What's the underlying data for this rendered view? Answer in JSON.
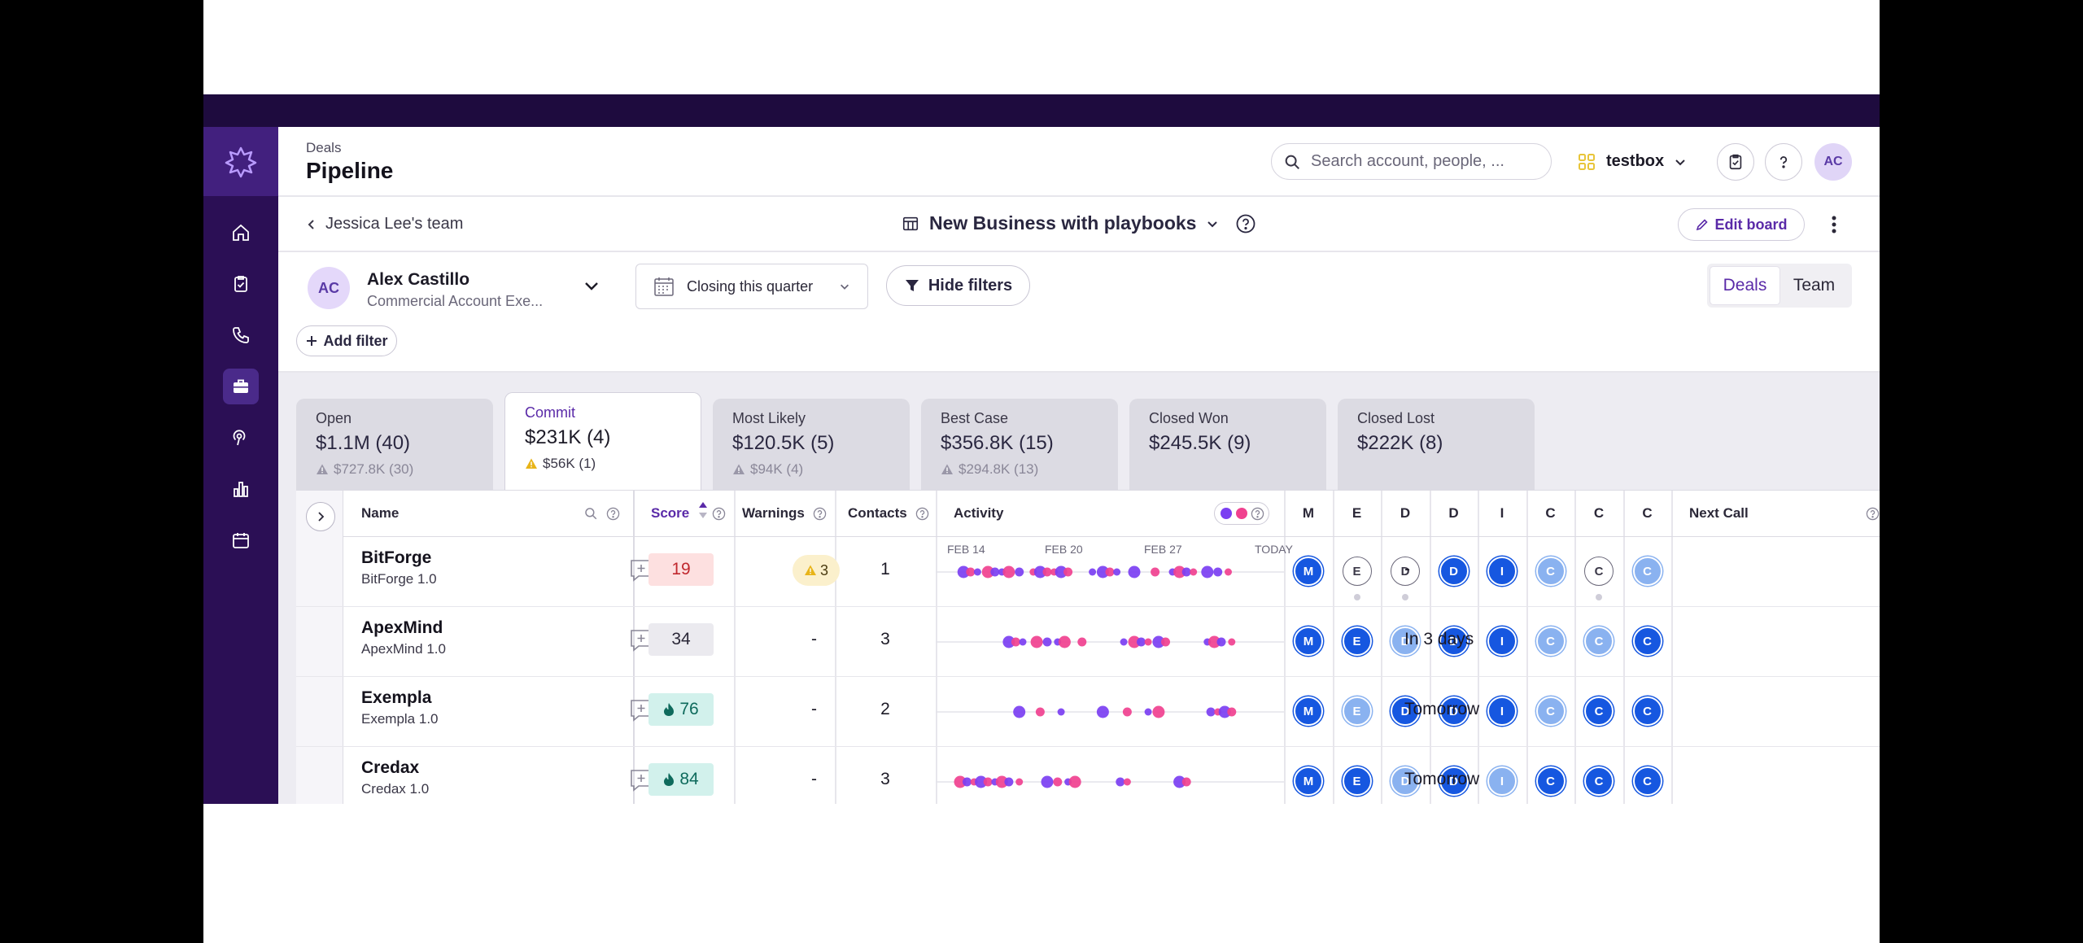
{
  "header": {
    "breadcrumb": "Deals",
    "title": "Pipeline",
    "search_placeholder": "Search account, people, ...",
    "workspace": "testbox",
    "avatar_initials": "AC"
  },
  "board_bar": {
    "back_label": "Jessica Lee's team",
    "board_name": "New Business with playbooks",
    "edit_label": "Edit board"
  },
  "filters": {
    "user_initials": "AC",
    "user_name": "Alex Castillo",
    "user_role": "Commercial Account Exe...",
    "period": "Closing this quarter",
    "hide_filters_label": "Hide filters",
    "add_filter_label": "Add filter",
    "view_toggle": [
      "Deals",
      "Team"
    ],
    "active_view": "Deals"
  },
  "forecast_tabs": [
    {
      "label": "Open",
      "value": "$1.1M (40)",
      "sub": "$727.8K (30)"
    },
    {
      "label": "Commit",
      "value": "$231K (4)",
      "sub": "$56K (1)"
    },
    {
      "label": "Most Likely",
      "value": "$120.5K (5)",
      "sub": "$94K (4)"
    },
    {
      "label": "Best Case",
      "value": "$356.8K (15)",
      "sub": "$294.8K (13)"
    },
    {
      "label": "Closed Won",
      "value": "$245.5K (9)",
      "sub": ""
    },
    {
      "label": "Closed Lost",
      "value": "$222K (8)",
      "sub": ""
    }
  ],
  "active_tab": "Commit",
  "table": {
    "columns": {
      "name": "Name",
      "score": "Score",
      "warnings": "Warnings",
      "contacts": "Contacts",
      "activity": "Activity",
      "roles": [
        "M",
        "E",
        "D",
        "D",
        "I",
        "C",
        "C",
        "C"
      ],
      "next_call": "Next Call"
    },
    "activity_dates": [
      "FEB 14",
      "FEB 20",
      "FEB 27",
      "TODAY"
    ],
    "rows": [
      {
        "name": "BitForge",
        "sub": "BitForge 1.0",
        "score": "19",
        "score_tone": "red",
        "score_flame": false,
        "warnings": "3",
        "contacts": "1",
        "contact_styles": [
          "dark",
          "empty",
          "empty",
          "dark",
          "dark",
          "light",
          "empty",
          "light"
        ],
        "contact_dots": [
          1,
          2,
          6
        ],
        "activity": [
          [
            0.08,
            "m"
          ],
          [
            0.1,
            "p"
          ],
          [
            0.12,
            "m"
          ],
          [
            0.15,
            "p"
          ],
          [
            0.17,
            "m"
          ],
          [
            0.19,
            "m"
          ],
          [
            0.21,
            "p"
          ],
          [
            0.24,
            "m"
          ],
          [
            0.28,
            "p"
          ],
          [
            0.3,
            "m"
          ],
          [
            0.32,
            "p"
          ],
          [
            0.34,
            "p"
          ],
          [
            0.36,
            "m"
          ],
          [
            0.38,
            "p"
          ],
          [
            0.45,
            "m"
          ],
          [
            0.48,
            "m"
          ],
          [
            0.5,
            "p"
          ],
          [
            0.52,
            "m"
          ],
          [
            0.57,
            "m"
          ],
          [
            0.63,
            "p"
          ],
          [
            0.68,
            "m"
          ],
          [
            0.7,
            "p"
          ],
          [
            0.72,
            "m"
          ],
          [
            0.74,
            "p"
          ],
          [
            0.78,
            "m"
          ],
          [
            0.81,
            "m"
          ],
          [
            0.84,
            "p"
          ]
        ],
        "next_call": "-"
      },
      {
        "name": "ApexMind",
        "sub": "ApexMind 1.0",
        "score": "34",
        "score_tone": "gray",
        "score_flame": false,
        "warnings": "-",
        "contacts": "3",
        "contact_styles": [
          "dark",
          "dark",
          "light",
          "dark",
          "dark",
          "light",
          "light",
          "dark"
        ],
        "contact_dots": [],
        "activity": [
          [
            0.21,
            "m"
          ],
          [
            0.23,
            "p"
          ],
          [
            0.25,
            "m"
          ],
          [
            0.29,
            "p"
          ],
          [
            0.32,
            "m"
          ],
          [
            0.35,
            "m"
          ],
          [
            0.37,
            "p"
          ],
          [
            0.42,
            "p"
          ],
          [
            0.54,
            "m"
          ],
          [
            0.57,
            "p"
          ],
          [
            0.59,
            "m"
          ],
          [
            0.61,
            "p"
          ],
          [
            0.64,
            "m"
          ],
          [
            0.66,
            "p"
          ],
          [
            0.78,
            "m"
          ],
          [
            0.8,
            "p"
          ],
          [
            0.82,
            "m"
          ],
          [
            0.85,
            "p"
          ]
        ],
        "next_call": "In 3 days"
      },
      {
        "name": "Exempla",
        "sub": "Exempla 1.0",
        "score": "76",
        "score_tone": "teal",
        "score_flame": true,
        "warnings": "-",
        "contacts": "2",
        "contact_styles": [
          "dark",
          "light",
          "dark",
          "dark",
          "dark",
          "light",
          "dark",
          "dark"
        ],
        "contact_dots": [],
        "activity": [
          [
            0.24,
            "m"
          ],
          [
            0.3,
            "p"
          ],
          [
            0.36,
            "m"
          ],
          [
            0.48,
            "m"
          ],
          [
            0.55,
            "p"
          ],
          [
            0.61,
            "m"
          ],
          [
            0.64,
            "p"
          ],
          [
            0.79,
            "m"
          ],
          [
            0.81,
            "p"
          ],
          [
            0.83,
            "m"
          ],
          [
            0.85,
            "p"
          ]
        ],
        "next_call": "Tomorrow"
      },
      {
        "name": "Credax",
        "sub": "Credax 1.0",
        "score": "84",
        "score_tone": "teal",
        "score_flame": true,
        "warnings": "-",
        "contacts": "3",
        "contact_styles": [
          "dark",
          "dark",
          "light",
          "dark",
          "light",
          "dark",
          "dark",
          "dark"
        ],
        "contact_dots": [],
        "activity": [
          [
            0.07,
            "p"
          ],
          [
            0.09,
            "m"
          ],
          [
            0.11,
            "p"
          ],
          [
            0.13,
            "m"
          ],
          [
            0.15,
            "p"
          ],
          [
            0.17,
            "m"
          ],
          [
            0.19,
            "p"
          ],
          [
            0.21,
            "m"
          ],
          [
            0.24,
            "p"
          ],
          [
            0.32,
            "m"
          ],
          [
            0.35,
            "p"
          ],
          [
            0.38,
            "m"
          ],
          [
            0.4,
            "p"
          ],
          [
            0.53,
            "m"
          ],
          [
            0.55,
            "p"
          ],
          [
            0.7,
            "m"
          ],
          [
            0.72,
            "p"
          ]
        ],
        "next_call": "Tomorrow"
      }
    ]
  },
  "colors": {
    "accent": "#5a2aa8",
    "sidebar": "#2b0f55",
    "activity_magenta": "#f0418f",
    "activity_purple": "#7b3ff2",
    "contact_dark": "#1657e0",
    "contact_light": "#8ab2f0"
  },
  "icons": {
    "sidebar": [
      "home-icon",
      "tasks-icon",
      "phone-icon",
      "briefcase-icon",
      "podcast-icon",
      "bar-chart-icon",
      "calendar-icon"
    ]
  }
}
